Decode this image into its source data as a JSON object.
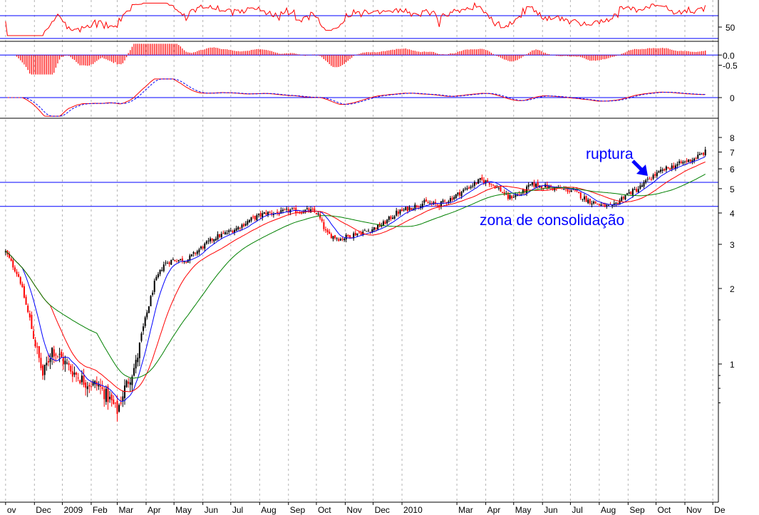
{
  "chart_data": {
    "type": "candlestick",
    "title": "",
    "xlabel": "",
    "ylabel": "",
    "x_tick_labels": [
      "ov",
      "Dec",
      "2009",
      "Feb",
      "Mar",
      "Apr",
      "May",
      "Jun",
      "Jul",
      "Aug",
      "Sep",
      "Oct",
      "Nov",
      "Dec",
      "2010",
      "Mar",
      "Apr",
      "May",
      "Jun",
      "Jul",
      "Aug",
      "Sep",
      "Oct",
      "Nov",
      "De"
    ],
    "x_tick_days": [
      0,
      31,
      61,
      92,
      120,
      151,
      181,
      212,
      242,
      273,
      304,
      334,
      365,
      395,
      426,
      485,
      516,
      546,
      577,
      607,
      638,
      669,
      699,
      730,
      760
    ],
    "x_range": [
      -6,
      766
    ],
    "y_scale": "log",
    "ylim": [
      0.6,
      9
    ],
    "y_tick_labels": [
      "1",
      "2",
      "3",
      "4",
      "5",
      "6",
      "7",
      "8"
    ],
    "y_tick_values": [
      1,
      2,
      3,
      4,
      5,
      6,
      7,
      8
    ],
    "horizontal_levels": [
      5.3,
      4.25
    ],
    "close_anchors": [
      [
        0,
        2.8
      ],
      [
        15,
        2.2
      ],
      [
        30,
        1.3
      ],
      [
        40,
        0.9
      ],
      [
        50,
        1.15
      ],
      [
        60,
        1.05
      ],
      [
        70,
        0.95
      ],
      [
        85,
        0.85
      ],
      [
        100,
        0.82
      ],
      [
        112,
        0.72
      ],
      [
        120,
        0.65
      ],
      [
        128,
        0.8
      ],
      [
        140,
        1.0
      ],
      [
        150,
        1.5
      ],
      [
        160,
        2.1
      ],
      [
        170,
        2.5
      ],
      [
        180,
        2.6
      ],
      [
        195,
        2.6
      ],
      [
        210,
        2.9
      ],
      [
        225,
        3.2
      ],
      [
        235,
        3.3
      ],
      [
        250,
        3.5
      ],
      [
        265,
        3.8
      ],
      [
        280,
        4.0
      ],
      [
        295,
        4.0
      ],
      [
        305,
        4.1
      ],
      [
        315,
        4.05
      ],
      [
        325,
        4.1
      ],
      [
        335,
        4.0
      ],
      [
        345,
        3.3
      ],
      [
        360,
        3.15
      ],
      [
        375,
        3.3
      ],
      [
        390,
        3.4
      ],
      [
        405,
        3.6
      ],
      [
        420,
        4.0
      ],
      [
        435,
        4.2
      ],
      [
        450,
        4.4
      ],
      [
        465,
        4.3
      ],
      [
        480,
        4.6
      ],
      [
        495,
        5.0
      ],
      [
        510,
        5.4
      ],
      [
        520,
        5.3
      ],
      [
        530,
        5.0
      ],
      [
        540,
        4.6
      ],
      [
        555,
        4.8
      ],
      [
        565,
        5.2
      ],
      [
        580,
        5.1
      ],
      [
        595,
        5.0
      ],
      [
        610,
        4.9
      ],
      [
        625,
        4.5
      ],
      [
        640,
        4.3
      ],
      [
        652,
        4.2
      ],
      [
        665,
        4.7
      ],
      [
        680,
        5.0
      ],
      [
        695,
        5.6
      ],
      [
        710,
        6.0
      ],
      [
        725,
        6.3
      ],
      [
        740,
        6.6
      ],
      [
        752,
        7.0
      ]
    ],
    "series": [
      {
        "indicator": "moving_average",
        "period": 20,
        "color": "#0000ff"
      },
      {
        "indicator": "moving_average",
        "period": 50,
        "color": "#ff0000"
      },
      {
        "indicator": "moving_average",
        "period": 100,
        "color": "#008000"
      }
    ],
    "oscillator_panels": [
      {
        "type": "line",
        "ylim": [
          25,
          95
        ],
        "y_tick_labels": [
          "50"
        ],
        "y_tick_values": [
          50
        ],
        "reference_levels": [
          70,
          30
        ],
        "color": "#ff0000"
      },
      {
        "type": "histogram",
        "ylim": [
          -1,
          0.6
        ],
        "y_tick_labels": [
          "0.0",
          "-0.5"
        ],
        "y_tick_values": [
          0,
          -0.5
        ],
        "reference_levels": [
          0
        ],
        "color": "#ff0000"
      },
      {
        "type": "line",
        "ylim": [
          -1,
          1
        ],
        "y_tick_labels": [
          "0"
        ],
        "y_tick_values": [
          0
        ],
        "reference_levels": [
          0
        ],
        "color": "#ff0000",
        "signal_color": "#0000ff"
      }
    ],
    "annotations": [
      {
        "text": "ruptura",
        "color": "#0000ff"
      },
      {
        "text": "zona de consolidação",
        "color": "#0000ff"
      }
    ],
    "colors": {
      "up_candle": "#000000",
      "down_candle": "#ff0000",
      "levels": "#0000ff",
      "grid": "#b4b4b4"
    }
  }
}
